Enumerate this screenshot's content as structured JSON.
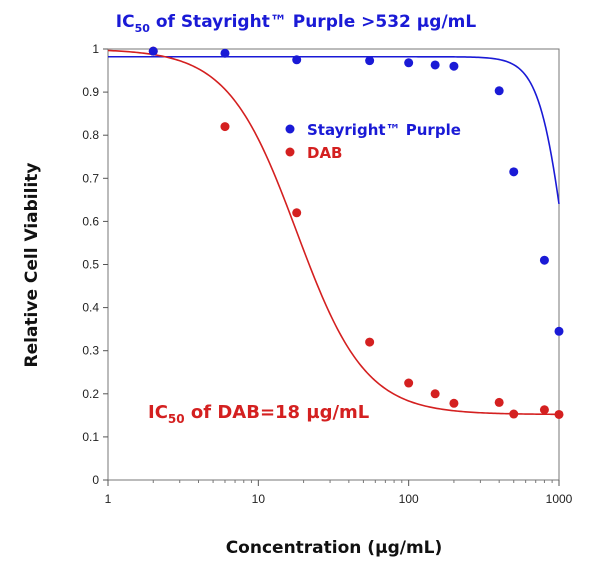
{
  "chart_data": {
    "type": "scatter",
    "title": "IC50 of Stayright™ Purple >532 µg/mL",
    "title_parts": {
      "prefix": "IC",
      "subscript": "50",
      "suffix": " of Stayright™ Purple >532 µg/mL"
    },
    "xlabel": "Concentration (µg/mL)",
    "ylabel": "Relative Cell Viability",
    "x_scale": "log",
    "xlim": [
      1,
      1000
    ],
    "ylim": [
      0,
      1
    ],
    "x_ticks": [
      1,
      10,
      100,
      1000
    ],
    "x_tick_labels": [
      "1",
      "10",
      "100",
      "1000"
    ],
    "y_ticks": [
      0,
      0.1,
      0.2,
      0.3,
      0.4,
      0.5,
      0.6,
      0.7,
      0.8,
      0.9,
      1
    ],
    "y_tick_labels": [
      "0",
      "0.1",
      "0.2",
      "0.3",
      "0.4",
      "0.5",
      "0.6",
      "0.7",
      "0.8",
      "0.9",
      "1"
    ],
    "grid": false,
    "legend_position": "upper-right",
    "series": [
      {
        "name": "Stayright™ Purple",
        "color": "#1a1ad6",
        "points": [
          {
            "x": 2,
            "y": 0.995
          },
          {
            "x": 6,
            "y": 0.99
          },
          {
            "x": 18,
            "y": 0.975
          },
          {
            "x": 55,
            "y": 0.973
          },
          {
            "x": 100,
            "y": 0.968
          },
          {
            "x": 150,
            "y": 0.963
          },
          {
            "x": 200,
            "y": 0.96
          },
          {
            "x": 400,
            "y": 0.903
          },
          {
            "x": 500,
            "y": 0.715
          },
          {
            "x": 800,
            "y": 0.51
          },
          {
            "x": 1000,
            "y": 0.345
          }
        ],
        "fit": {
          "top": 0.982,
          "bottom": 0.0,
          "ic50": 1140,
          "hill": 4.8
        }
      },
      {
        "name": "DAB",
        "color": "#d42020",
        "points": [
          {
            "x": 2,
            "y": 0.995
          },
          {
            "x": 6,
            "y": 0.82
          },
          {
            "x": 18,
            "y": 0.62
          },
          {
            "x": 55,
            "y": 0.32
          },
          {
            "x": 100,
            "y": 0.225
          },
          {
            "x": 150,
            "y": 0.2
          },
          {
            "x": 200,
            "y": 0.178
          },
          {
            "x": 400,
            "y": 0.18
          },
          {
            "x": 500,
            "y": 0.153
          },
          {
            "x": 800,
            "y": 0.163
          },
          {
            "x": 1000,
            "y": 0.152
          }
        ],
        "fit": {
          "top": 1.0,
          "bottom": 0.152,
          "ic50": 18,
          "hill": 1.9
        }
      }
    ],
    "annotation": {
      "prefix": "IC",
      "subscript": "50",
      "suffix": " of DAB=18 µg/mL"
    }
  }
}
